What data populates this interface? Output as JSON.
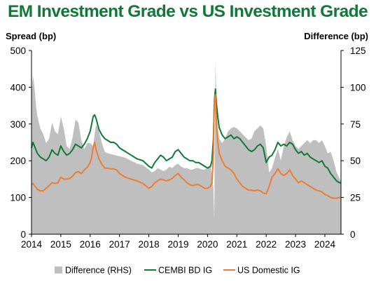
{
  "title": "EM Investment Grade vs US Investment Grade",
  "chart_data": {
    "type": "line",
    "title": "EM Investment Grade vs US Investment Grade",
    "ylabel_left": "Spread (bp)",
    "ylabel_right": "Difference (bp)",
    "ylim_left": [
      0,
      500
    ],
    "ylim_right": [
      0,
      125
    ],
    "yticks_left": [
      "0",
      "100",
      "200",
      "300",
      "400",
      "500"
    ],
    "yticks_right": [
      "0",
      "25",
      "50",
      "75",
      "100",
      "125"
    ],
    "xlim": [
      2014.0,
      2024.55
    ],
    "xticks": [
      "2014",
      "2015",
      "2016",
      "2017",
      "2018",
      "2019",
      "2020",
      "2021",
      "2022",
      "2023",
      "2024"
    ],
    "grid": false,
    "legend_position": "bottom",
    "colors": {
      "Difference (RHS)": "#bfbfbf",
      "CEMBI BD IG": "#0f7a36",
      "US Domestic IG": "#ee7d31"
    },
    "series": [
      {
        "name": "Difference (RHS)",
        "type": "area",
        "axis": "right",
        "x": [
          2014.0,
          2014.05,
          2014.1,
          2014.15,
          2014.2,
          2014.3,
          2014.4,
          2014.5,
          2014.6,
          2014.7,
          2014.8,
          2014.9,
          2015.0,
          2015.1,
          2015.2,
          2015.3,
          2015.4,
          2015.5,
          2015.6,
          2015.7,
          2015.8,
          2015.9,
          2016.0,
          2016.1,
          2016.2,
          2016.3,
          2016.4,
          2016.5,
          2016.6,
          2016.8,
          2017.0,
          2017.2,
          2017.4,
          2017.6,
          2017.8,
          2018.0,
          2018.1,
          2018.2,
          2018.3,
          2018.4,
          2018.5,
          2018.6,
          2018.7,
          2018.8,
          2018.9,
          2019.0,
          2019.1,
          2019.2,
          2019.3,
          2019.4,
          2019.5,
          2019.6,
          2019.7,
          2019.8,
          2019.9,
          2020.0,
          2020.1,
          2020.15,
          2020.2,
          2020.23,
          2020.27,
          2020.3,
          2020.35,
          2020.4,
          2020.5,
          2020.6,
          2020.7,
          2020.8,
          2020.9,
          2021.0,
          2021.1,
          2021.2,
          2021.3,
          2021.4,
          2021.5,
          2021.6,
          2021.7,
          2021.8,
          2021.9,
          2022.0,
          2022.1,
          2022.2,
          2022.3,
          2022.4,
          2022.5,
          2022.6,
          2022.7,
          2022.8,
          2022.9,
          2023.0,
          2023.1,
          2023.2,
          2023.3,
          2023.4,
          2023.5,
          2023.6,
          2023.7,
          2023.8,
          2023.9,
          2024.0,
          2024.1,
          2024.2,
          2024.3,
          2024.4,
          2024.5,
          2024.55
        ],
        "values": [
          95,
          108,
          100,
          88,
          80,
          72,
          68,
          62,
          65,
          76,
          70,
          68,
          80,
          72,
          60,
          58,
          66,
          78,
          76,
          64,
          58,
          62,
          62,
          60,
          75,
          70,
          62,
          56,
          55,
          54,
          53,
          52,
          50,
          48,
          47,
          44,
          42,
          43,
          45,
          44,
          43,
          44,
          46,
          45,
          47,
          48,
          46,
          45,
          45,
          44,
          44,
          45,
          45,
          44,
          44,
          45,
          47,
          40,
          32,
          10,
          118,
          95,
          72,
          65,
          62,
          65,
          70,
          72,
          73,
          72,
          70,
          68,
          66,
          64,
          65,
          70,
          72,
          74,
          72,
          60,
          42,
          45,
          52,
          58,
          50,
          60,
          66,
          70,
          64,
          60,
          58,
          60,
          62,
          64,
          62,
          64,
          64,
          62,
          64,
          60,
          55,
          56,
          50,
          42,
          38,
          36
        ]
      },
      {
        "name": "CEMBI BD IG",
        "type": "line",
        "axis": "left",
        "x": [
          2014.0,
          2014.05,
          2014.1,
          2014.15,
          2014.2,
          2014.3,
          2014.4,
          2014.5,
          2014.6,
          2014.7,
          2014.8,
          2014.9,
          2015.0,
          2015.1,
          2015.2,
          2015.3,
          2015.4,
          2015.5,
          2015.6,
          2015.7,
          2015.8,
          2015.9,
          2016.0,
          2016.05,
          2016.1,
          2016.15,
          2016.2,
          2016.3,
          2016.4,
          2016.5,
          2016.6,
          2016.7,
          2016.8,
          2016.9,
          2017.0,
          2017.2,
          2017.4,
          2017.6,
          2017.8,
          2018.0,
          2018.1,
          2018.2,
          2018.3,
          2018.4,
          2018.5,
          2018.6,
          2018.7,
          2018.8,
          2018.9,
          2019.0,
          2019.1,
          2019.2,
          2019.3,
          2019.4,
          2019.5,
          2019.6,
          2019.7,
          2019.8,
          2019.9,
          2020.0,
          2020.1,
          2020.15,
          2020.2,
          2020.23,
          2020.27,
          2020.3,
          2020.35,
          2020.4,
          2020.5,
          2020.6,
          2020.7,
          2020.8,
          2020.9,
          2021.0,
          2021.1,
          2021.2,
          2021.3,
          2021.4,
          2021.5,
          2021.6,
          2021.7,
          2021.8,
          2021.9,
          2022.0,
          2022.1,
          2022.2,
          2022.3,
          2022.4,
          2022.5,
          2022.6,
          2022.7,
          2022.8,
          2022.9,
          2023.0,
          2023.1,
          2023.2,
          2023.3,
          2023.4,
          2023.5,
          2023.6,
          2023.7,
          2023.8,
          2023.9,
          2024.0,
          2024.1,
          2024.2,
          2024.3,
          2024.4,
          2024.5,
          2024.55
        ],
        "values": [
          235,
          250,
          240,
          230,
          220,
          210,
          205,
          200,
          210,
          230,
          220,
          215,
          240,
          225,
          215,
          220,
          230,
          245,
          240,
          235,
          245,
          260,
          280,
          300,
          320,
          325,
          315,
          285,
          270,
          260,
          255,
          250,
          250,
          245,
          235,
          225,
          215,
          205,
          200,
          185,
          180,
          195,
          205,
          215,
          210,
          200,
          205,
          210,
          225,
          230,
          220,
          210,
          205,
          200,
          200,
          195,
          195,
          190,
          185,
          180,
          185,
          200,
          260,
          360,
          395,
          360,
          320,
          290,
          270,
          260,
          265,
          270,
          260,
          265,
          260,
          250,
          240,
          230,
          225,
          230,
          240,
          245,
          235,
          195,
          210,
          215,
          230,
          250,
          240,
          245,
          240,
          250,
          245,
          230,
          220,
          225,
          215,
          220,
          210,
          205,
          200,
          195,
          200,
          185,
          180,
          165,
          155,
          145,
          140,
          140
        ]
      },
      {
        "name": "US Domestic IG",
        "type": "line",
        "axis": "left",
        "x": [
          2014.0,
          2014.05,
          2014.1,
          2014.15,
          2014.2,
          2014.3,
          2014.4,
          2014.5,
          2014.6,
          2014.7,
          2014.8,
          2014.9,
          2015.0,
          2015.1,
          2015.2,
          2015.3,
          2015.4,
          2015.5,
          2015.6,
          2015.7,
          2015.8,
          2015.9,
          2016.0,
          2016.05,
          2016.1,
          2016.15,
          2016.2,
          2016.3,
          2016.4,
          2016.5,
          2016.6,
          2016.7,
          2016.8,
          2016.9,
          2017.0,
          2017.2,
          2017.4,
          2017.6,
          2017.8,
          2018.0,
          2018.1,
          2018.2,
          2018.3,
          2018.4,
          2018.5,
          2018.6,
          2018.7,
          2018.8,
          2018.9,
          2019.0,
          2019.1,
          2019.2,
          2019.3,
          2019.4,
          2019.5,
          2019.6,
          2019.7,
          2019.8,
          2019.9,
          2020.0,
          2020.1,
          2020.15,
          2020.2,
          2020.23,
          2020.27,
          2020.3,
          2020.35,
          2020.4,
          2020.5,
          2020.6,
          2020.7,
          2020.8,
          2020.9,
          2021.0,
          2021.1,
          2021.2,
          2021.3,
          2021.4,
          2021.5,
          2021.6,
          2021.7,
          2021.8,
          2021.9,
          2022.0,
          2022.1,
          2022.2,
          2022.3,
          2022.4,
          2022.5,
          2022.6,
          2022.7,
          2022.8,
          2022.9,
          2023.0,
          2023.1,
          2023.2,
          2023.3,
          2023.4,
          2023.5,
          2023.6,
          2023.7,
          2023.8,
          2023.9,
          2024.0,
          2024.1,
          2024.2,
          2024.3,
          2024.4,
          2024.5,
          2024.55
        ],
        "values": [
          135,
          138,
          132,
          128,
          122,
          118,
          118,
          125,
          132,
          140,
          138,
          140,
          155,
          150,
          150,
          152,
          158,
          168,
          170,
          165,
          175,
          182,
          195,
          210,
          235,
          250,
          230,
          205,
          190,
          180,
          180,
          178,
          178,
          175,
          165,
          155,
          150,
          145,
          138,
          125,
          130,
          140,
          145,
          150,
          148,
          145,
          148,
          152,
          160,
          165,
          155,
          148,
          140,
          135,
          132,
          135,
          135,
          130,
          125,
          125,
          130,
          140,
          220,
          360,
          380,
          310,
          250,
          220,
          200,
          185,
          180,
          175,
          165,
          150,
          140,
          130,
          125,
          120,
          120,
          118,
          120,
          118,
          112,
          110,
          130,
          155,
          165,
          178,
          165,
          160,
          165,
          175,
          160,
          150,
          140,
          145,
          140,
          135,
          130,
          125,
          120,
          118,
          115,
          108,
          105,
          100,
          98,
          98,
          100,
          100
        ]
      }
    ]
  }
}
